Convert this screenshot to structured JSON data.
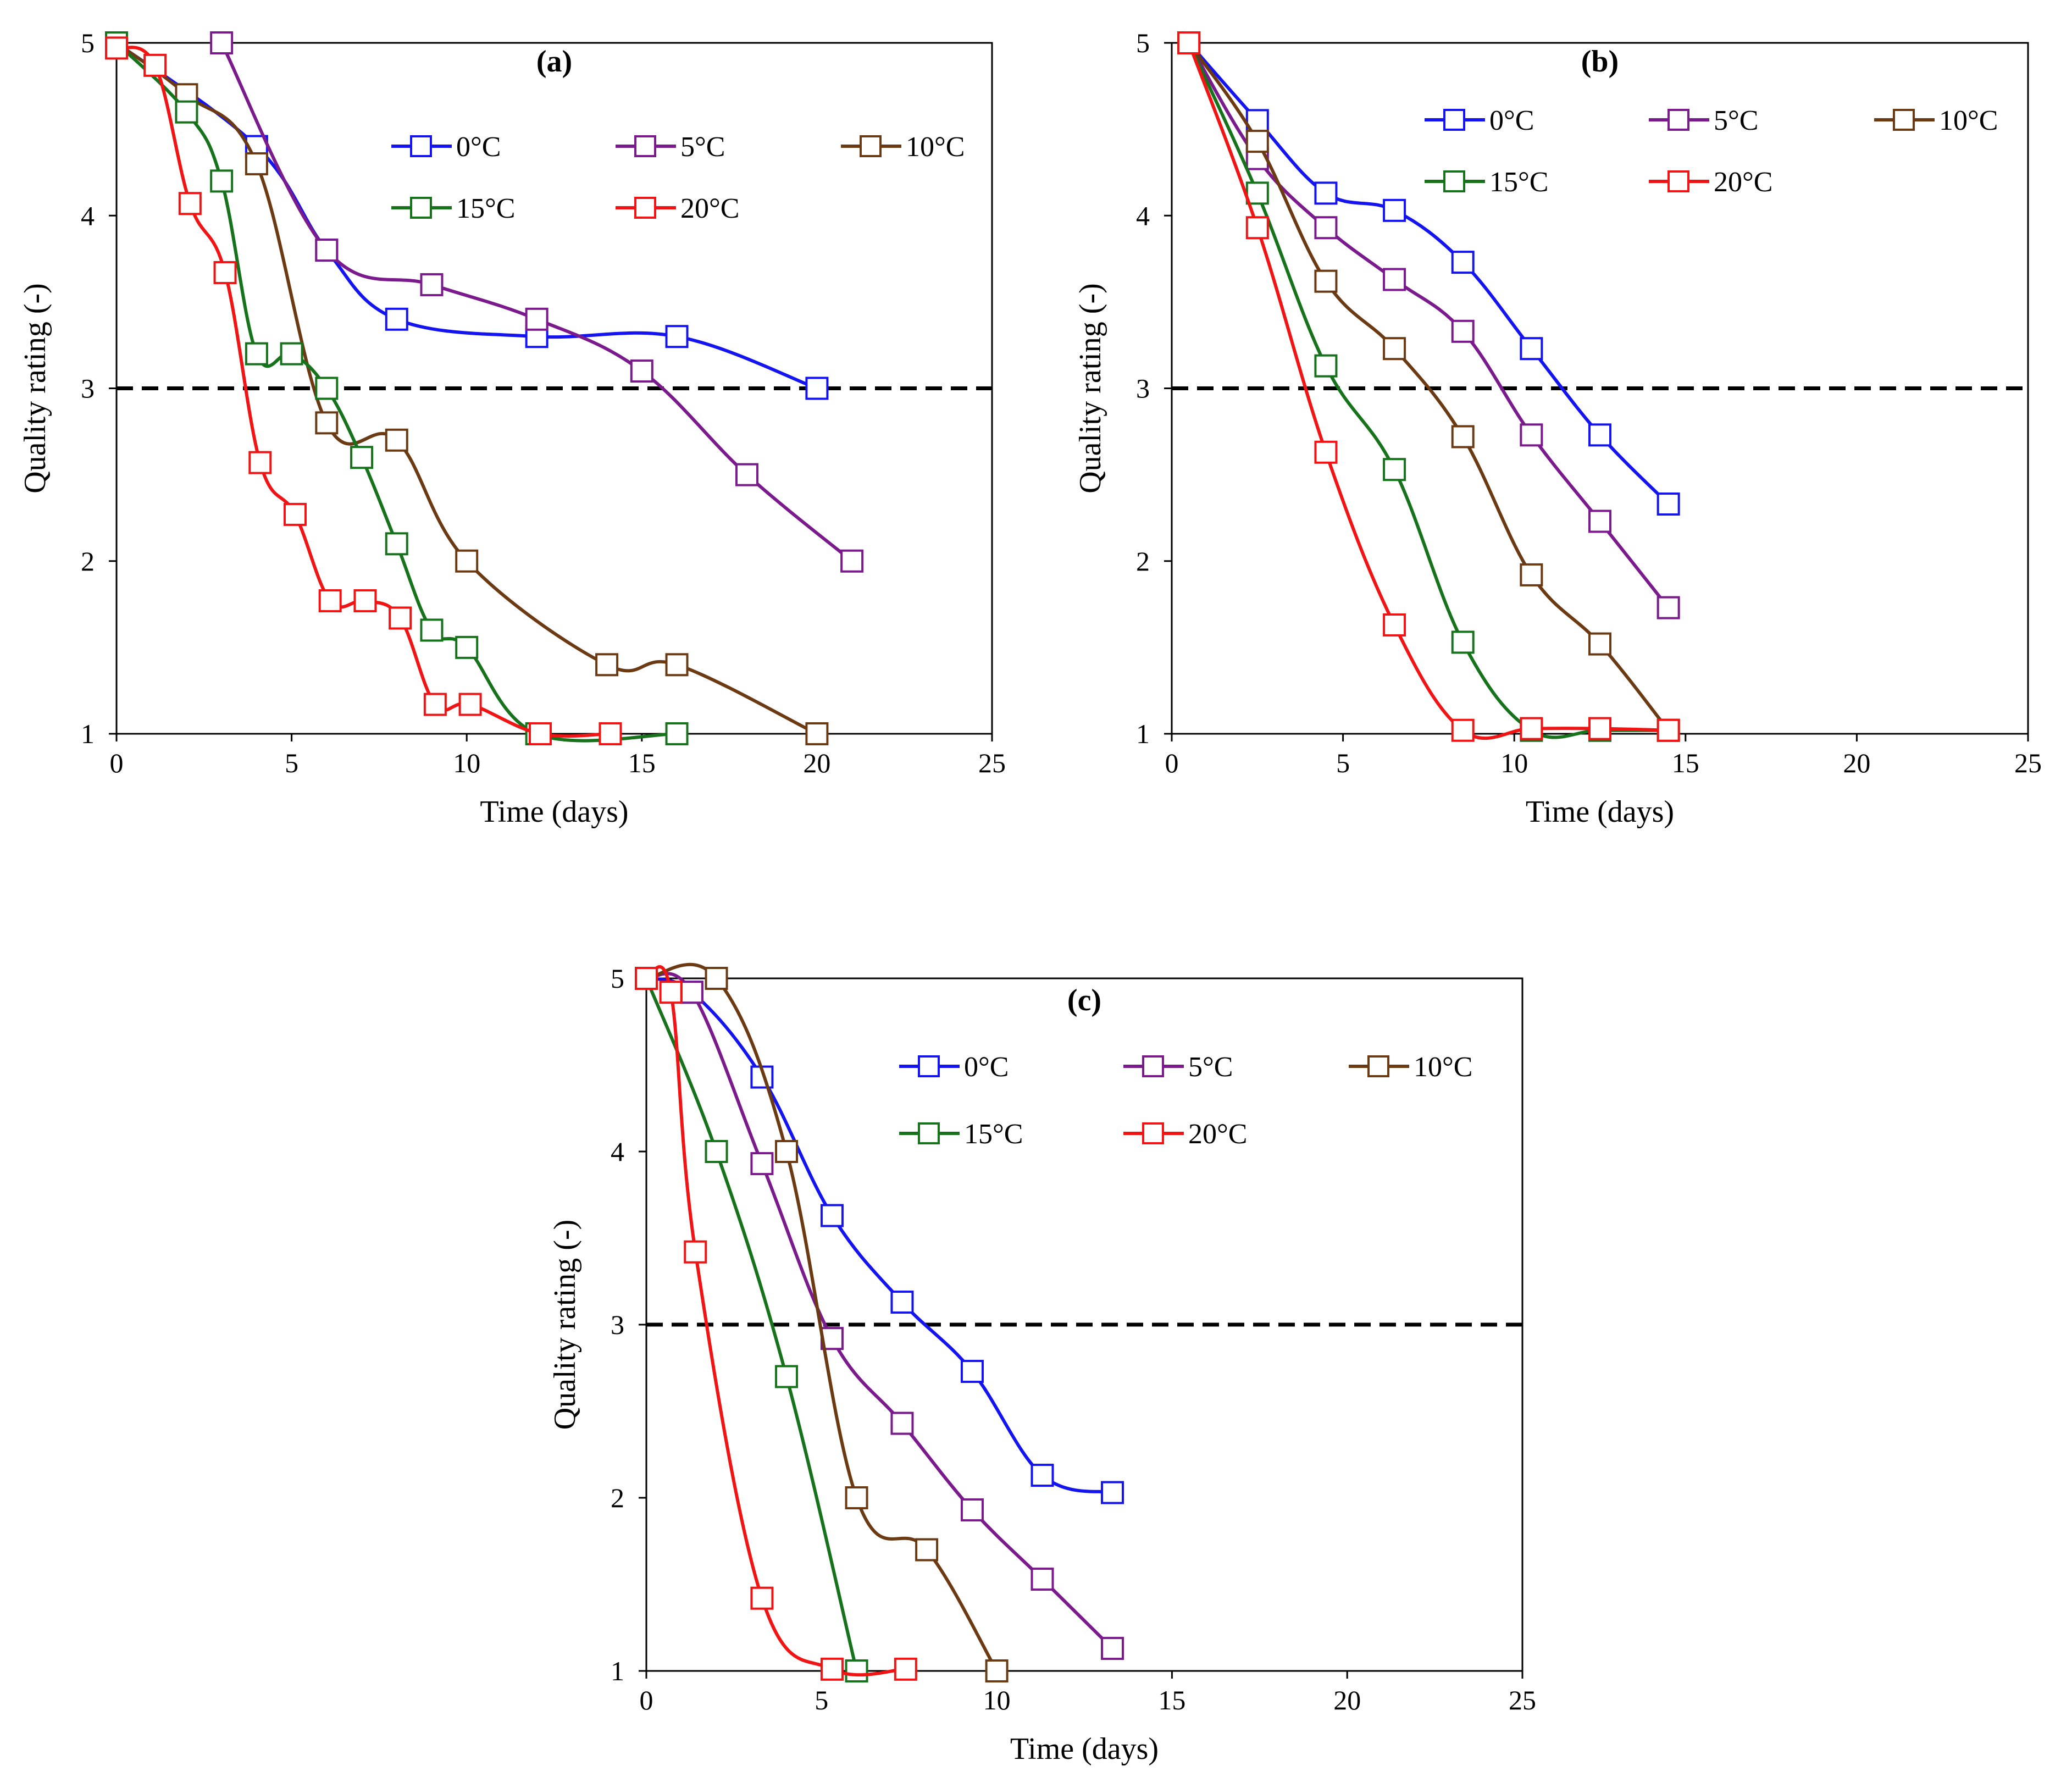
{
  "chart_data": [
    {
      "panel": "(a)",
      "type": "line",
      "xlabel": "Time (days)",
      "ylabel": "Quality rating (-)",
      "xlim": [
        0,
        25
      ],
      "ylim": [
        1,
        5
      ],
      "xticks": [
        0,
        5,
        10,
        15,
        20,
        25
      ],
      "yticks": [
        1,
        2,
        3,
        4,
        5
      ],
      "threshold": 3,
      "series": [
        {
          "name": "0°C",
          "color": "#1414f0",
          "x": [
            0,
            4,
            6,
            8,
            12,
            16,
            20
          ],
          "y": [
            5,
            4.4,
            3.8,
            3.4,
            3.3,
            3.3,
            3.0
          ]
        },
        {
          "name": "5°C",
          "color": "#7a1a8c",
          "x": [
            3,
            6,
            9,
            12,
            15,
            18,
            21
          ],
          "y": [
            5,
            3.8,
            3.6,
            3.4,
            3.1,
            2.5,
            2.0
          ]
        },
        {
          "name": "10°C",
          "color": "#6b3a12",
          "x": [
            0,
            2,
            4,
            6,
            8,
            10,
            14,
            16,
            20
          ],
          "y": [
            5,
            4.7,
            4.3,
            2.8,
            2.7,
            2.0,
            1.4,
            1.4,
            1.0
          ]
        },
        {
          "name": "15°C",
          "color": "#16731c",
          "x": [
            0,
            2,
            3,
            4,
            5,
            6,
            7,
            8,
            9,
            10,
            12,
            16
          ],
          "y": [
            5,
            4.6,
            4.2,
            3.2,
            3.2,
            3.0,
            2.6,
            2.1,
            1.6,
            1.5,
            1.0,
            1.0
          ]
        },
        {
          "name": "20°C",
          "color": "#f01414",
          "x": [
            0,
            1.1,
            2.1,
            3.1,
            4.1,
            5.1,
            6.1,
            7.1,
            8.1,
            9.1,
            10.1,
            12.1,
            14.1
          ],
          "y": [
            4.97,
            4.87,
            4.07,
            3.67,
            2.57,
            2.27,
            1.77,
            1.77,
            1.67,
            1.17,
            1.17,
            1.0,
            1.0
          ]
        }
      ]
    },
    {
      "panel": "(b)",
      "type": "line",
      "xlabel": "Time (days)",
      "ylabel": "Quality rating (-)",
      "xlim": [
        0,
        25
      ],
      "ylim": [
        1,
        5
      ],
      "xticks": [
        0,
        5,
        10,
        15,
        20,
        25
      ],
      "yticks": [
        1,
        2,
        3,
        4,
        5
      ],
      "threshold": 3,
      "series": [
        {
          "name": "0°C",
          "color": "#1414f0",
          "x": [
            0.5,
            2.5,
            4.5,
            6.5,
            8.5,
            10.5,
            12.5,
            14.5
          ],
          "y": [
            5,
            4.55,
            4.13,
            4.03,
            3.73,
            3.23,
            2.73,
            2.33
          ]
        },
        {
          "name": "5°C",
          "color": "#7a1a8c",
          "x": [
            0.5,
            2.5,
            4.5,
            6.5,
            8.5,
            10.5,
            12.5,
            14.5
          ],
          "y": [
            5,
            4.33,
            3.93,
            3.63,
            3.33,
            2.73,
            2.23,
            1.73
          ]
        },
        {
          "name": "10°C",
          "color": "#6b3a12",
          "x": [
            0.5,
            2.5,
            4.5,
            6.5,
            8.5,
            10.5,
            12.5,
            14.5
          ],
          "y": [
            5,
            4.43,
            3.62,
            3.23,
            2.72,
            1.92,
            1.52,
            1.02
          ]
        },
        {
          "name": "15°C",
          "color": "#16731c",
          "x": [
            0.5,
            2.5,
            4.5,
            6.5,
            8.5,
            10.5,
            12.5,
            14.5
          ],
          "y": [
            5,
            4.13,
            3.13,
            2.53,
            1.53,
            1.02,
            1.02,
            1.02
          ]
        },
        {
          "name": "20°C",
          "color": "#f01414",
          "x": [
            0.5,
            2.5,
            4.5,
            6.5,
            8.5,
            10.5,
            12.5,
            14.5
          ],
          "y": [
            5,
            3.93,
            2.63,
            1.63,
            1.02,
            1.03,
            1.03,
            1.02
          ]
        }
      ]
    },
    {
      "panel": "(c)",
      "type": "line",
      "xlabel": "Time (days)",
      "ylabel": "Quality rating (-)",
      "xlim": [
        0,
        25
      ],
      "ylim": [
        1,
        5
      ],
      "xticks": [
        0,
        5,
        10,
        15,
        20,
        25
      ],
      "yticks": [
        1,
        2,
        3,
        4,
        5
      ],
      "threshold": 3,
      "series": [
        {
          "name": "0°C",
          "color": "#1414f0",
          "x": [
            0,
            1.3,
            3.3,
            5.3,
            7.3,
            9.3,
            11.3,
            13.3
          ],
          "y": [
            5,
            4.92,
            4.43,
            3.63,
            3.13,
            2.73,
            2.13,
            2.03
          ]
        },
        {
          "name": "5°C",
          "color": "#7a1a8c",
          "x": [
            0,
            1.3,
            3.3,
            5.3,
            7.3,
            9.3,
            11.3,
            13.3
          ],
          "y": [
            5,
            4.92,
            3.93,
            2.92,
            2.43,
            1.93,
            1.53,
            1.13
          ]
        },
        {
          "name": "10°C",
          "color": "#6b3a12",
          "x": [
            0,
            2,
            4,
            6,
            8,
            10
          ],
          "y": [
            5,
            5.0,
            4.0,
            2.0,
            1.7,
            1.0
          ]
        },
        {
          "name": "15°C",
          "color": "#16731c",
          "x": [
            0,
            2,
            4,
            6
          ],
          "y": [
            5,
            4.0,
            2.7,
            1.0
          ]
        },
        {
          "name": "20°C",
          "color": "#f01414",
          "x": [
            0,
            0.7,
            1.4,
            3.3,
            5.3,
            7.4
          ],
          "y": [
            5,
            4.92,
            3.42,
            1.42,
            1.01,
            1.01
          ]
        }
      ]
    }
  ]
}
